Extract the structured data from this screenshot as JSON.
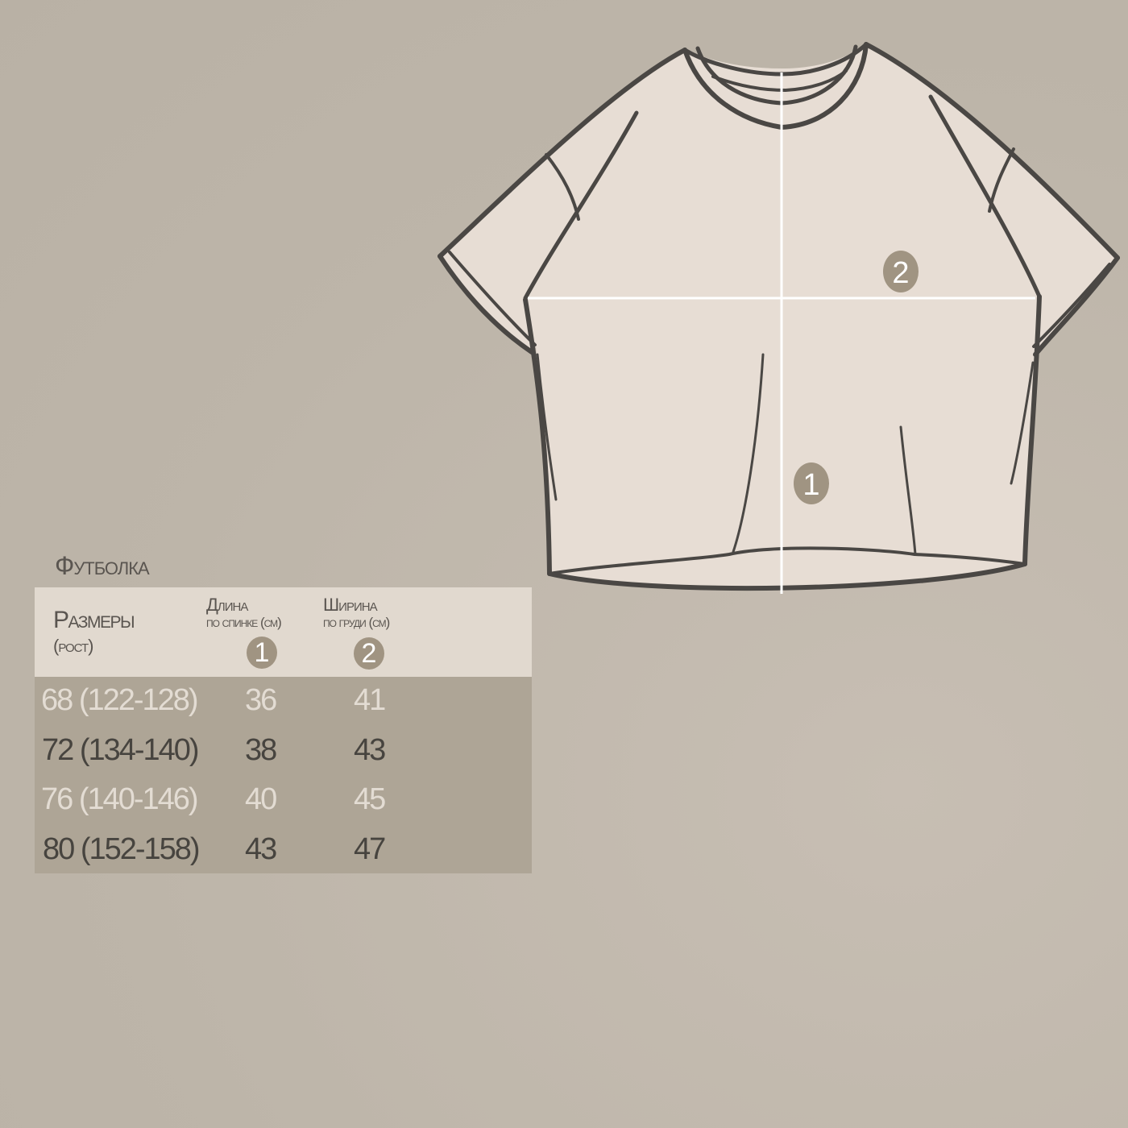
{
  "diagram": {
    "badges": [
      {
        "label": "1"
      },
      {
        "label": "2"
      }
    ],
    "colors": {
      "shirt_fill": "#e7ddd4",
      "outline": "#4a4744",
      "measure_line": "#ffffff",
      "badge": "#a09482"
    }
  },
  "table": {
    "title": "Футболка",
    "header": {
      "sizes": "Размеры",
      "sizes_sub": "(рост)",
      "col1_title": "Длина",
      "col1_sub": "по спинке (см)",
      "col1_badge": "1",
      "col2_title": "Ширина",
      "col2_sub": "по груди (см)",
      "col2_badge": "2"
    },
    "rows": [
      {
        "size": "68 (122-128)",
        "length": "36",
        "width": "41"
      },
      {
        "size": "72 (134-140)",
        "length": "38",
        "width": "43"
      },
      {
        "size": "76 (140-146)",
        "length": "40",
        "width": "45"
      },
      {
        "size": "80 (152-158)",
        "length": "43",
        "width": "47"
      }
    ],
    "colors": {
      "header_bg": "#e1d9cf",
      "body_bg": "#aea596",
      "light_text": "#e3dcd3",
      "dark_text": "#47443f"
    }
  }
}
